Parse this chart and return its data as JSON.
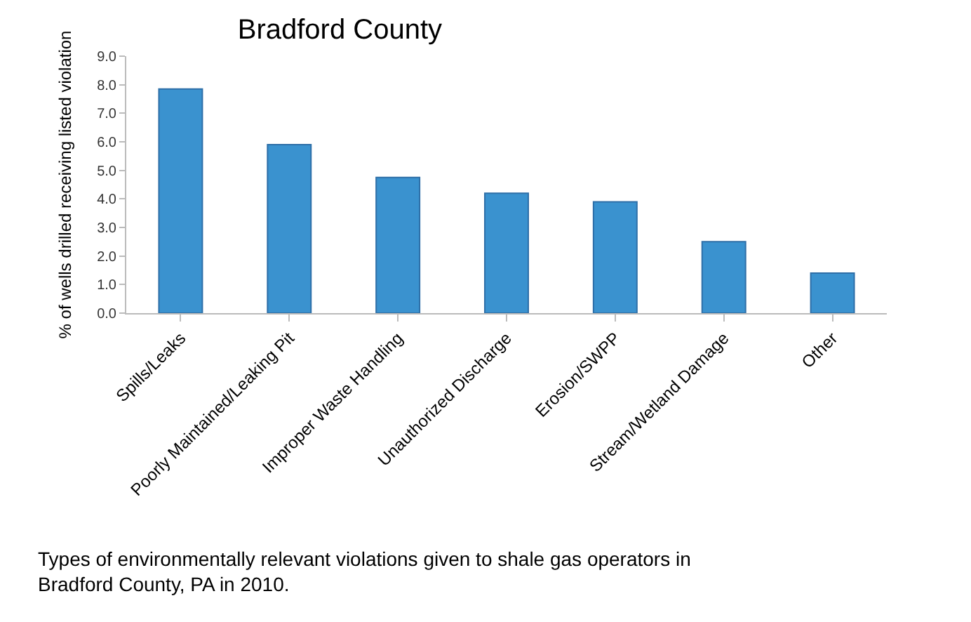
{
  "chart_data": {
    "type": "bar",
    "title": "Bradford County",
    "ylabel": "% of wells drilled receiving listed violation",
    "categories": [
      "Spills/Leaks",
      "Poorly Maintained/Leaking Pit",
      "Improper Waste Handling",
      "Unauthorized Discharge",
      "Erosion/SWPP",
      "Stream/Wetland Damage",
      "Other"
    ],
    "values": [
      7.85,
      5.9,
      4.75,
      4.2,
      3.9,
      2.5,
      1.4
    ],
    "color": "#3a92cf",
    "ylim": [
      0,
      9
    ],
    "yticks": [
      {
        "value": 0,
        "label": "0.0"
      },
      {
        "value": 1,
        "label": "1.0"
      },
      {
        "value": 2,
        "label": "2.0"
      },
      {
        "value": 3,
        "label": "3.0"
      },
      {
        "value": 4,
        "label": "4.0"
      },
      {
        "value": 5,
        "label": "5.0"
      },
      {
        "value": 6,
        "label": "6.0"
      },
      {
        "value": 7,
        "label": "7.0"
      },
      {
        "value": 8,
        "label": "8.0"
      },
      {
        "value": 9,
        "label": "9.0"
      }
    ],
    "grid": false,
    "legend": false,
    "annotations": [
      "Types of environmentally relevant violations given to shale gas operators in Bradford County, PA in 2010."
    ]
  }
}
